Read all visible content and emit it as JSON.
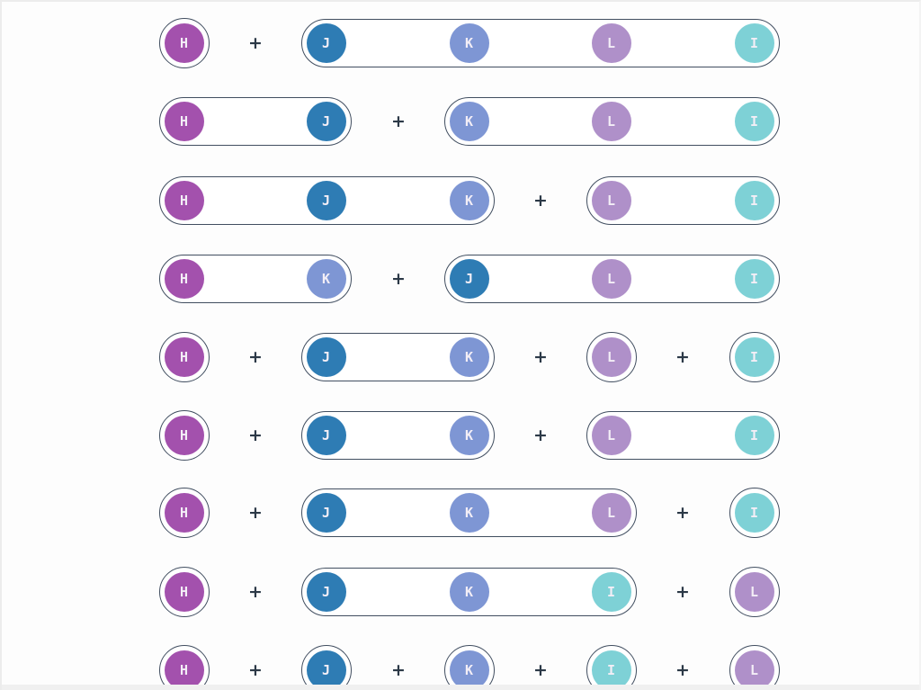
{
  "diagram": {
    "title": "set-partition-diagram",
    "elements": [
      "H",
      "J",
      "K",
      "L",
      "I"
    ],
    "element_colors": {
      "H": "#a351ad",
      "J": "#2e7cb4",
      "K": "#7e96d4",
      "L": "#af90c9",
      "I": "#7ed1d6"
    },
    "letter_color": "#f3eef6",
    "outline_color": "#414e60",
    "plus_color": "#2c3947",
    "plus_symbol": "+",
    "rows": [
      {
        "blocks": [
          [
            "H"
          ],
          [
            "J",
            "K",
            "L",
            "I"
          ]
        ]
      },
      {
        "blocks": [
          [
            "H",
            "J"
          ],
          [
            "K",
            "L",
            "I"
          ]
        ]
      },
      {
        "blocks": [
          [
            "H",
            "J",
            "K"
          ],
          [
            "L",
            "I"
          ]
        ]
      },
      {
        "blocks": [
          [
            "H",
            "K"
          ],
          [
            "J",
            "L",
            "I"
          ]
        ]
      },
      {
        "blocks": [
          [
            "H"
          ],
          [
            "J",
            "K"
          ],
          [
            "L"
          ],
          [
            "I"
          ]
        ]
      },
      {
        "blocks": [
          [
            "H"
          ],
          [
            "J",
            "K"
          ],
          [
            "L",
            "I"
          ]
        ]
      },
      {
        "blocks": [
          [
            "H"
          ],
          [
            "J",
            "K",
            "L"
          ],
          [
            "I"
          ]
        ]
      },
      {
        "blocks": [
          [
            "H"
          ],
          [
            "J",
            "K",
            "I"
          ],
          [
            "L"
          ]
        ]
      },
      {
        "blocks": [
          [
            "H"
          ],
          [
            "J"
          ],
          [
            "K"
          ],
          [
            "I"
          ],
          [
            "L"
          ]
        ]
      }
    ]
  }
}
